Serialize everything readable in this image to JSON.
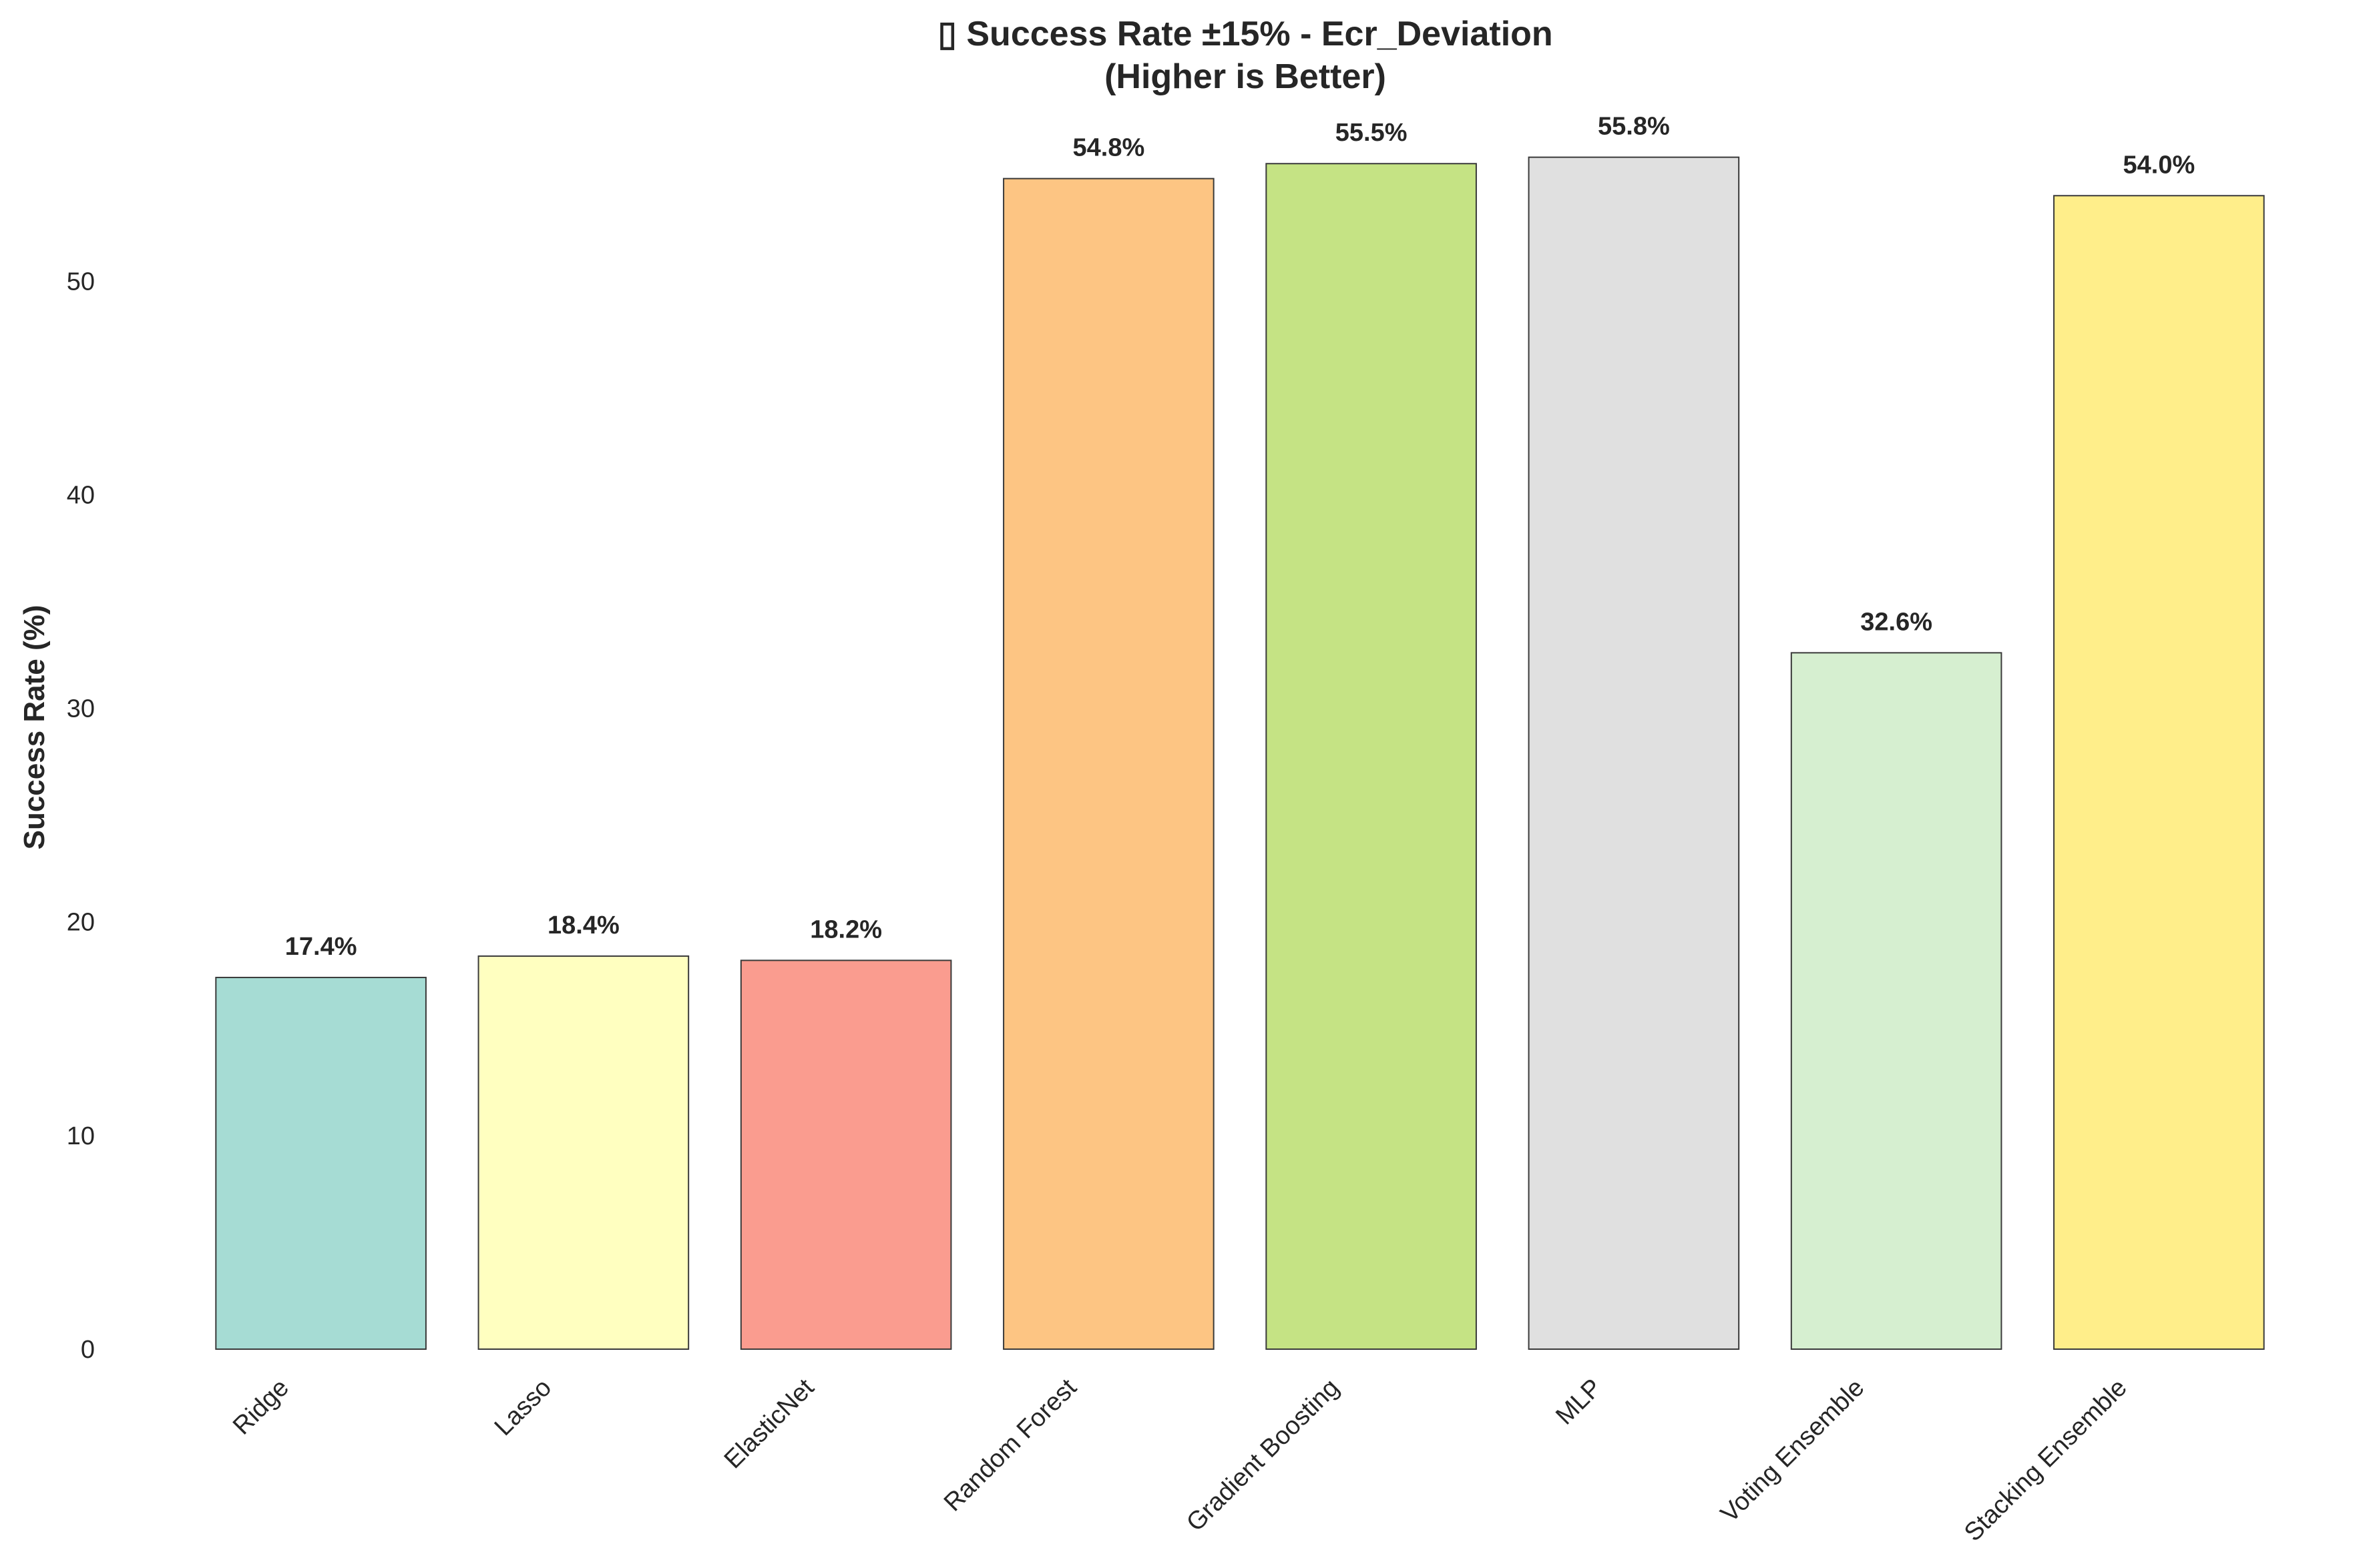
{
  "chart_data": {
    "type": "bar",
    "title": "▯ Success Rate ±15% - Ecr_Deviation",
    "subtitle": "(Higher is Better)",
    "xlabel": "",
    "ylabel": "Success Rate (%)",
    "ylim": [
      0,
      58.6
    ],
    "yticks": [
      0,
      10,
      20,
      30,
      40,
      50
    ],
    "grid": false,
    "categories": [
      "Ridge",
      "Lasso",
      "ElasticNet",
      "Random Forest",
      "Gradient Boosting",
      "MLP",
      "Voting Ensemble",
      "Stacking Ensemble"
    ],
    "values": [
      17.4,
      18.4,
      18.2,
      54.8,
      55.5,
      55.8,
      32.6,
      54.0
    ],
    "value_labels": [
      "17.4%",
      "18.4%",
      "18.2%",
      "54.8%",
      "55.5%",
      "55.8%",
      "32.6%",
      "54.0%"
    ],
    "colors": [
      "#a6dcd4",
      "#ffffc0",
      "#fa9c8f",
      "#fdc583",
      "#c5e384",
      "#e0e0e0",
      "#d6efd0",
      "#ffee8a"
    ],
    "edge_color": "#3a3a3a"
  }
}
